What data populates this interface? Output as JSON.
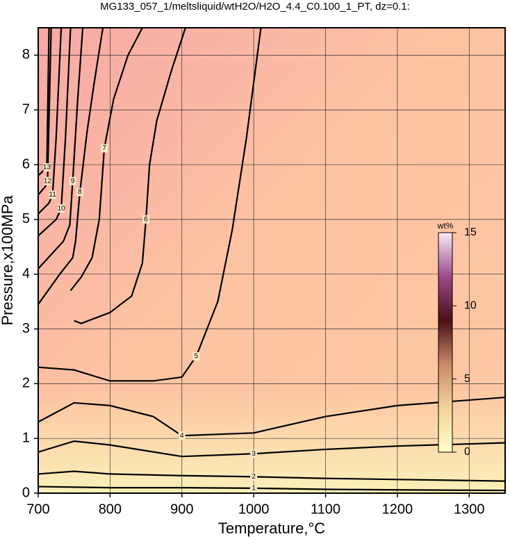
{
  "chart_data": {
    "type": "contour",
    "title": "MG133_057_1/meltsliquid/wtH2O/H2O_4.4_C0.100_1_PT, dz=0.1:",
    "x_label": "Temperature,°C",
    "y_label": "Pressure,x100MPa",
    "xlim": [
      700,
      1350
    ],
    "ylim": [
      0,
      8.5
    ],
    "xticks": [
      700,
      800,
      900,
      1000,
      1100,
      1200,
      1300
    ],
    "yticks": [
      0,
      1,
      2,
      3,
      4,
      5,
      6,
      7,
      8
    ],
    "grid": true,
    "line_color": "#000000",
    "colorbar": {
      "label": "wt%",
      "lim": [
        0,
        15
      ],
      "ticks": [
        0,
        5,
        10,
        15
      ]
    },
    "contours": [
      {
        "level": 1,
        "x": [
          700,
          800,
          900,
          1000,
          1100,
          1200,
          1350
        ],
        "y": [
          0.12,
          0.1,
          0.1,
          0.09,
          0.07,
          0.06,
          0.05
        ]
      },
      {
        "level": 2,
        "x": [
          700,
          750,
          800,
          900,
          1000,
          1100,
          1200,
          1350
        ],
        "y": [
          0.35,
          0.4,
          0.35,
          0.32,
          0.3,
          0.27,
          0.25,
          0.22
        ]
      },
      {
        "level": 3,
        "x": [
          700,
          750,
          800,
          900,
          1000,
          1100,
          1200,
          1350
        ],
        "y": [
          0.75,
          0.95,
          0.88,
          0.67,
          0.72,
          0.8,
          0.86,
          0.92
        ]
      },
      {
        "level": 4,
        "x": [
          700,
          750,
          800,
          860,
          900,
          1000,
          1100,
          1200,
          1350
        ],
        "y": [
          1.3,
          1.65,
          1.6,
          1.4,
          1.05,
          1.1,
          1.4,
          1.6,
          1.75
        ]
      },
      {
        "level": 5,
        "x": [
          700,
          750,
          800,
          860,
          900,
          920,
          950,
          970,
          990,
          1010
        ],
        "y": [
          2.3,
          2.25,
          2.05,
          2.05,
          2.12,
          2.5,
          3.5,
          4.8,
          6.5,
          8.5
        ]
      },
      {
        "level": 6,
        "x": [
          750,
          760,
          800,
          830,
          845,
          850,
          855,
          865,
          885,
          905
        ],
        "y": [
          3.15,
          3.1,
          3.3,
          3.6,
          4.2,
          5.0,
          6.0,
          6.8,
          7.7,
          8.5
        ]
      },
      {
        "level": 7,
        "x": [
          745,
          760,
          775,
          785,
          792,
          805,
          825,
          845
        ],
        "y": [
          3.7,
          3.95,
          4.3,
          5.0,
          6.3,
          7.2,
          8.0,
          8.5
        ]
      },
      {
        "level": 8,
        "x": [
          700,
          730,
          748,
          752,
          758,
          768,
          778,
          790
        ],
        "y": [
          3.45,
          4.0,
          4.3,
          4.6,
          5.5,
          6.6,
          7.5,
          8.5
        ]
      },
      {
        "level": 9,
        "x": [
          700,
          735,
          744,
          748,
          755,
          762
        ],
        "y": [
          4.1,
          4.6,
          4.9,
          5.7,
          7.2,
          8.5
        ]
      },
      {
        "level": 10,
        "x": [
          700,
          725,
          732,
          738,
          745
        ],
        "y": [
          4.7,
          5.0,
          5.2,
          6.5,
          8.5
        ]
      },
      {
        "level": 11,
        "x": [
          700,
          715,
          720,
          725,
          732
        ],
        "y": [
          5.1,
          5.3,
          5.45,
          6.5,
          8.5
        ]
      },
      {
        "level": 12,
        "x": [
          700,
          710,
          713,
          718
        ],
        "y": [
          5.45,
          5.6,
          5.7,
          8.5
        ]
      },
      {
        "level": 13,
        "x": [
          700,
          708,
          712,
          715
        ],
        "y": [
          5.8,
          5.9,
          5.95,
          8.5
        ]
      }
    ]
  }
}
